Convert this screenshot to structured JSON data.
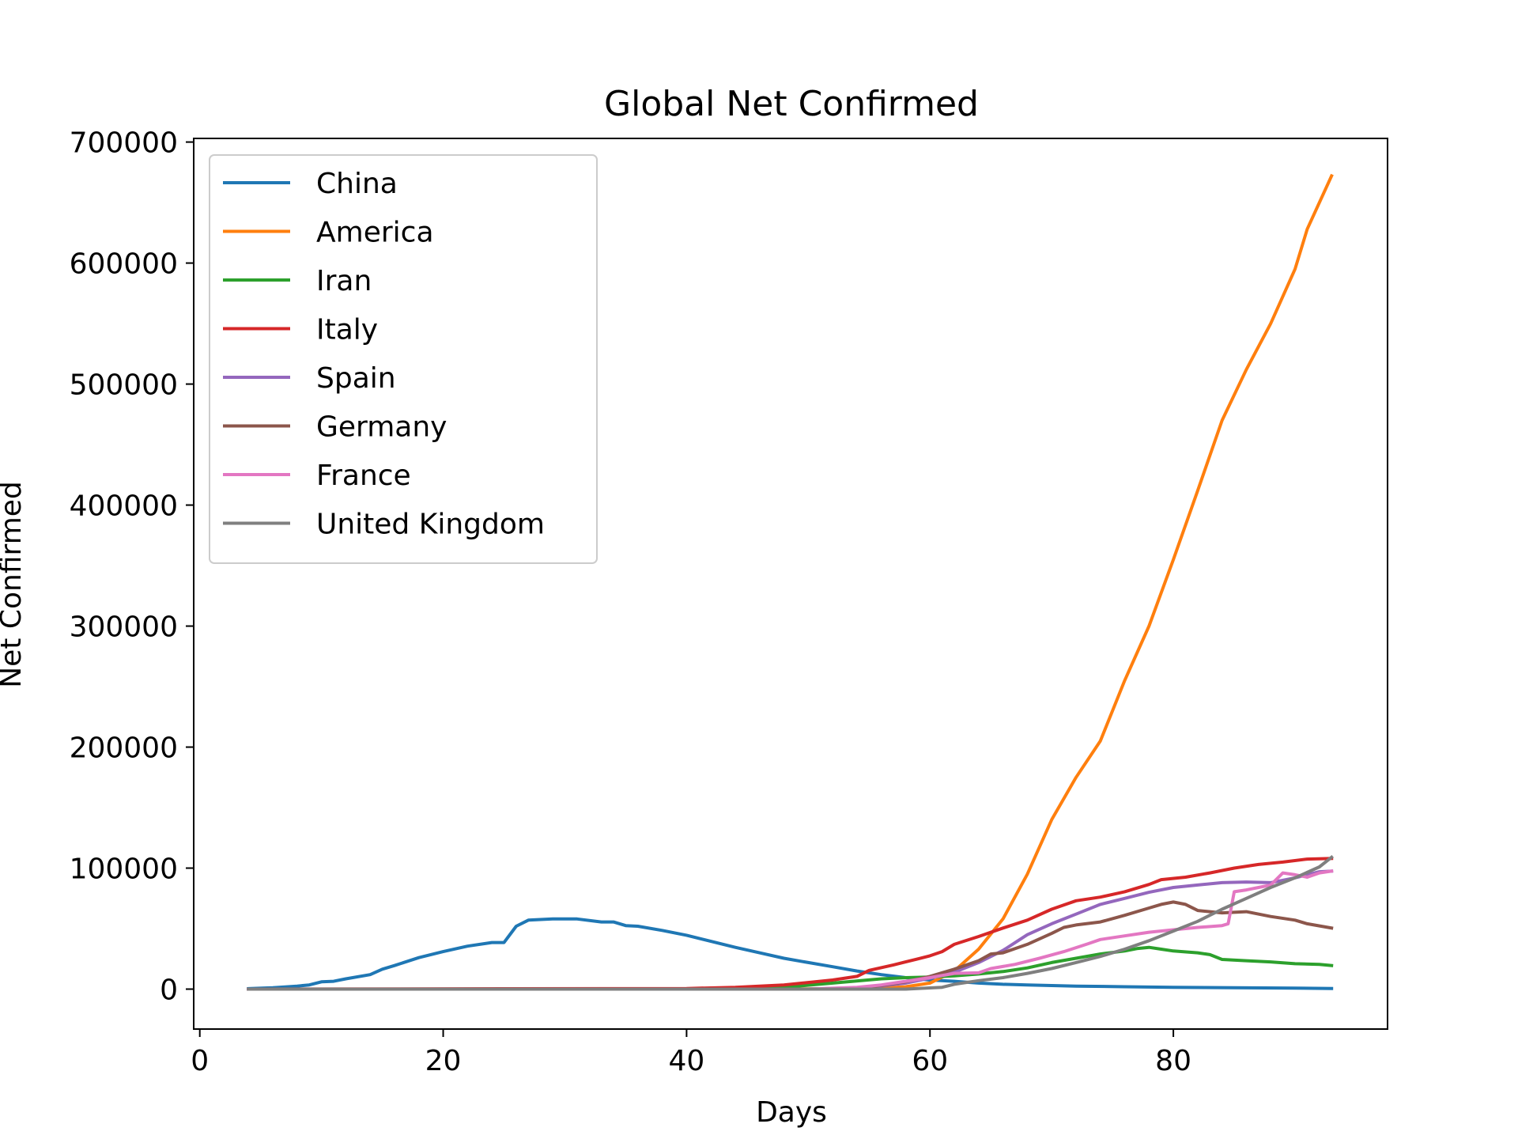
{
  "chart_data": {
    "type": "line",
    "title": "Global Net Confirmed",
    "xlabel": "Days",
    "ylabel": "Net Confirmed",
    "xlim": [
      -0.5,
      97.6
    ],
    "ylim": [
      -33000,
      703000
    ],
    "xticks": [
      0,
      20,
      40,
      60,
      80
    ],
    "yticks": [
      0,
      100000,
      200000,
      300000,
      400000,
      500000,
      600000,
      700000
    ],
    "grid": false,
    "legend_position": "upper-left",
    "series": [
      {
        "name": "China",
        "color": "#1f77b4",
        "points": [
          [
            4,
            400
          ],
          [
            6,
            1200
          ],
          [
            8,
            2500
          ],
          [
            9,
            3500
          ],
          [
            10,
            6000
          ],
          [
            11,
            6500
          ],
          [
            12,
            8500
          ],
          [
            14,
            12000
          ],
          [
            15,
            16500
          ],
          [
            16,
            19500
          ],
          [
            18,
            26000
          ],
          [
            20,
            31000
          ],
          [
            22,
            35500
          ],
          [
            24,
            38500
          ],
          [
            25,
            38500
          ],
          [
            26,
            52000
          ],
          [
            27,
            57000
          ],
          [
            29,
            58000
          ],
          [
            31,
            58000
          ],
          [
            33,
            55500
          ],
          [
            34,
            55500
          ],
          [
            35,
            52500
          ],
          [
            36,
            52000
          ],
          [
            38,
            48500
          ],
          [
            40,
            44500
          ],
          [
            42,
            39500
          ],
          [
            44,
            34500
          ],
          [
            46,
            30000
          ],
          [
            48,
            25500
          ],
          [
            50,
            22000
          ],
          [
            52,
            18500
          ],
          [
            54,
            15000
          ],
          [
            56,
            12000
          ],
          [
            58,
            9500
          ],
          [
            60,
            7500
          ],
          [
            62,
            6500
          ],
          [
            64,
            5000
          ],
          [
            66,
            4000
          ],
          [
            68,
            3500
          ],
          [
            72,
            2500
          ],
          [
            76,
            2000
          ],
          [
            80,
            1500
          ],
          [
            85,
            1200
          ],
          [
            90,
            800
          ],
          [
            93,
            500
          ]
        ]
      },
      {
        "name": "America",
        "color": "#ff7f0e",
        "points": [
          [
            4,
            0
          ],
          [
            40,
            0
          ],
          [
            50,
            200
          ],
          [
            55,
            500
          ],
          [
            58,
            2000
          ],
          [
            60,
            5000
          ],
          [
            62,
            15000
          ],
          [
            64,
            33000
          ],
          [
            66,
            58000
          ],
          [
            68,
            95000
          ],
          [
            70,
            140000
          ],
          [
            72,
            175000
          ],
          [
            74,
            205000
          ],
          [
            76,
            255000
          ],
          [
            78,
            300000
          ],
          [
            80,
            355000
          ],
          [
            82,
            412000
          ],
          [
            84,
            470000
          ],
          [
            86,
            512000
          ],
          [
            88,
            550000
          ],
          [
            90,
            595000
          ],
          [
            91,
            628000
          ],
          [
            93,
            672000
          ]
        ]
      },
      {
        "name": "Iran",
        "color": "#2ca02c",
        "points": [
          [
            4,
            0
          ],
          [
            40,
            0
          ],
          [
            48,
            1500
          ],
          [
            52,
            5000
          ],
          [
            56,
            8500
          ],
          [
            58,
            9500
          ],
          [
            60,
            10000
          ],
          [
            62,
            11000
          ],
          [
            64,
            12500
          ],
          [
            66,
            14500
          ],
          [
            68,
            17500
          ],
          [
            70,
            22000
          ],
          [
            72,
            25500
          ],
          [
            74,
            29000
          ],
          [
            76,
            31500
          ],
          [
            77,
            33500
          ],
          [
            78,
            34500
          ],
          [
            79,
            33000
          ],
          [
            80,
            31500
          ],
          [
            82,
            30000
          ],
          [
            83,
            28500
          ],
          [
            84,
            24500
          ],
          [
            86,
            23500
          ],
          [
            88,
            22500
          ],
          [
            90,
            21000
          ],
          [
            92,
            20500
          ],
          [
            93,
            19500
          ]
        ]
      },
      {
        "name": "Italy",
        "color": "#d62728",
        "points": [
          [
            4,
            0
          ],
          [
            40,
            500
          ],
          [
            44,
            1500
          ],
          [
            48,
            3500
          ],
          [
            50,
            5500
          ],
          [
            52,
            7500
          ],
          [
            54,
            10500
          ],
          [
            55,
            15500
          ],
          [
            57,
            20000
          ],
          [
            59,
            25000
          ],
          [
            60,
            27500
          ],
          [
            61,
            31000
          ],
          [
            62,
            37000
          ],
          [
            64,
            43500
          ],
          [
            66,
            50500
          ],
          [
            68,
            57000
          ],
          [
            70,
            66000
          ],
          [
            72,
            73000
          ],
          [
            74,
            76000
          ],
          [
            76,
            80500
          ],
          [
            78,
            86500
          ],
          [
            79,
            90500
          ],
          [
            81,
            92500
          ],
          [
            83,
            96000
          ],
          [
            85,
            100000
          ],
          [
            87,
            103000
          ],
          [
            89,
            105000
          ],
          [
            91,
            107500
          ],
          [
            93,
            108000
          ]
        ]
      },
      {
        "name": "Spain",
        "color": "#9467bd",
        "points": [
          [
            4,
            0
          ],
          [
            50,
            0
          ],
          [
            55,
            1500
          ],
          [
            58,
            5000
          ],
          [
            60,
            9000
          ],
          [
            62,
            14000
          ],
          [
            64,
            22000
          ],
          [
            66,
            32000
          ],
          [
            68,
            45000
          ],
          [
            70,
            54000
          ],
          [
            72,
            62000
          ],
          [
            74,
            70000
          ],
          [
            76,
            75000
          ],
          [
            78,
            80000
          ],
          [
            80,
            84000
          ],
          [
            82,
            86000
          ],
          [
            84,
            88000
          ],
          [
            86,
            88500
          ],
          [
            88,
            88000
          ],
          [
            90,
            92000
          ],
          [
            92,
            97000
          ],
          [
            93,
            97500
          ]
        ]
      },
      {
        "name": "Germany",
        "color": "#8c564b",
        "points": [
          [
            4,
            0
          ],
          [
            50,
            0
          ],
          [
            54,
            1000
          ],
          [
            56,
            3000
          ],
          [
            58,
            6000
          ],
          [
            60,
            10500
          ],
          [
            62,
            16500
          ],
          [
            64,
            23500
          ],
          [
            65,
            29000
          ],
          [
            66,
            30000
          ],
          [
            68,
            37000
          ],
          [
            70,
            46000
          ],
          [
            71,
            51000
          ],
          [
            72,
            53000
          ],
          [
            74,
            55500
          ],
          [
            76,
            61000
          ],
          [
            78,
            67000
          ],
          [
            79,
            70000
          ],
          [
            80,
            72000
          ],
          [
            81,
            70000
          ],
          [
            82,
            65000
          ],
          [
            84,
            63000
          ],
          [
            86,
            64000
          ],
          [
            88,
            60000
          ],
          [
            90,
            57000
          ],
          [
            91,
            54000
          ],
          [
            93,
            50500
          ]
        ]
      },
      {
        "name": "France",
        "color": "#e377c2",
        "points": [
          [
            4,
            0
          ],
          [
            50,
            0
          ],
          [
            54,
            1500
          ],
          [
            56,
            3500
          ],
          [
            58,
            6500
          ],
          [
            60,
            9500
          ],
          [
            62,
            13000
          ],
          [
            64,
            13500
          ],
          [
            65,
            17000
          ],
          [
            67,
            20500
          ],
          [
            69,
            25500
          ],
          [
            71,
            31000
          ],
          [
            73,
            37500
          ],
          [
            74,
            41000
          ],
          [
            76,
            44000
          ],
          [
            78,
            47000
          ],
          [
            80,
            49000
          ],
          [
            82,
            51000
          ],
          [
            84,
            52500
          ],
          [
            84.5,
            54000
          ],
          [
            85,
            80500
          ],
          [
            86,
            82000
          ],
          [
            87,
            84000
          ],
          [
            88,
            86000
          ],
          [
            89,
            96000
          ],
          [
            90,
            94500
          ],
          [
            91,
            92500
          ],
          [
            92,
            96000
          ],
          [
            93,
            97500
          ]
        ]
      },
      {
        "name": "United Kingdom",
        "color": "#7f7f7f",
        "points": [
          [
            4,
            0
          ],
          [
            58,
            0
          ],
          [
            60,
            1000
          ],
          [
            61,
            1500
          ],
          [
            62,
            4000
          ],
          [
            64,
            7000
          ],
          [
            66,
            9500
          ],
          [
            68,
            13000
          ],
          [
            70,
            17000
          ],
          [
            72,
            22000
          ],
          [
            74,
            27000
          ],
          [
            76,
            33000
          ],
          [
            78,
            40000
          ],
          [
            80,
            48000
          ],
          [
            82,
            56000
          ],
          [
            84,
            66000
          ],
          [
            86,
            75000
          ],
          [
            88,
            84000
          ],
          [
            90,
            92000
          ],
          [
            92,
            101000
          ],
          [
            93,
            109000
          ]
        ]
      }
    ]
  }
}
